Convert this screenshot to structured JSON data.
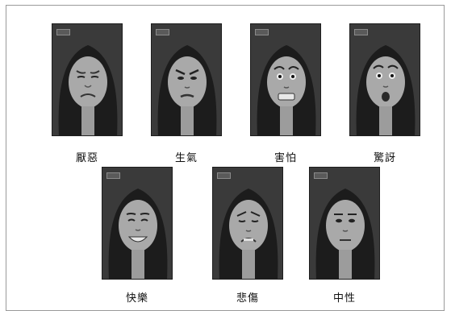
{
  "figure": {
    "expressions": [
      {
        "label": "厭惡",
        "expression": "disgust"
      },
      {
        "label": "生氣",
        "expression": "anger"
      },
      {
        "label": "害怕",
        "expression": "fear"
      },
      {
        "label": "驚訝",
        "expression": "surprise"
      },
      {
        "label": "快樂",
        "expression": "happiness"
      },
      {
        "label": "悲傷",
        "expression": "sadness"
      },
      {
        "label": "中性",
        "expression": "neutral"
      }
    ]
  },
  "colors": {
    "photo_background": "#3a3a3a",
    "hair": "#1c1c1c",
    "skin": "#a9a9a9",
    "caption_text": "#111111",
    "frame_border": "#9a9a9a"
  }
}
